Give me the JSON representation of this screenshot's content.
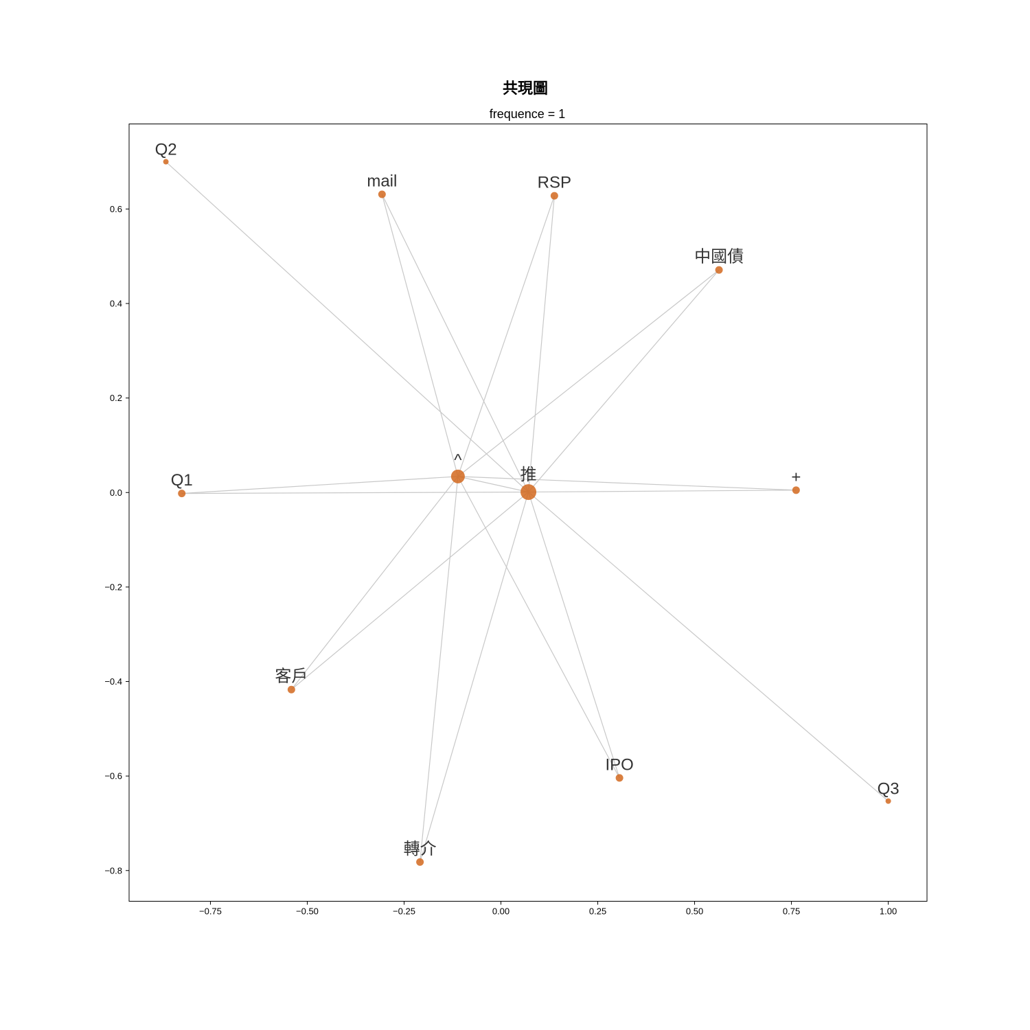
{
  "chart_data": {
    "type": "network",
    "title": "共現圖",
    "subtitle": "frequence = 1",
    "xlim": [
      -0.96,
      1.1
    ],
    "ylim": [
      -0.865,
      0.78
    ],
    "xticks": [
      {
        "value": -0.75,
        "label": "−0.75"
      },
      {
        "value": -0.5,
        "label": "−0.50"
      },
      {
        "value": -0.25,
        "label": "−0.25"
      },
      {
        "value": 0.0,
        "label": "0.00"
      },
      {
        "value": 0.25,
        "label": "0.25"
      },
      {
        "value": 0.5,
        "label": "0.50"
      },
      {
        "value": 0.75,
        "label": "0.75"
      },
      {
        "value": 1.0,
        "label": "1.00"
      }
    ],
    "yticks": [
      {
        "value": 0.6,
        "label": "0.6"
      },
      {
        "value": 0.4,
        "label": "0.4"
      },
      {
        "value": 0.2,
        "label": "0.2"
      },
      {
        "value": 0.0,
        "label": "0.0"
      },
      {
        "value": -0.2,
        "label": "−0.2"
      },
      {
        "value": -0.4,
        "label": "−0.4"
      },
      {
        "value": -0.6,
        "label": "−0.6"
      },
      {
        "value": -0.8,
        "label": "−0.8"
      }
    ],
    "node_color": "#d2691e",
    "edge_color": "#c8c8c8",
    "nodes": [
      {
        "id": "Q2",
        "x": -0.865,
        "y": 0.7,
        "weight": 1
      },
      {
        "id": "mail",
        "x": -0.307,
        "y": 0.631,
        "weight": 2
      },
      {
        "id": "RSP",
        "x": 0.138,
        "y": 0.628,
        "weight": 2
      },
      {
        "id": "中國債",
        "x": 0.563,
        "y": 0.471,
        "weight": 2
      },
      {
        "id": "^",
        "x": -0.111,
        "y": 0.034,
        "weight": 5
      },
      {
        "id": "Q1",
        "x": -0.824,
        "y": -0.002,
        "weight": 2
      },
      {
        "id": "推",
        "x": 0.071,
        "y": 0.001,
        "weight": 6
      },
      {
        "id": "+",
        "x": 0.762,
        "y": 0.005,
        "weight": 2
      },
      {
        "id": "客戶",
        "x": -0.541,
        "y": -0.417,
        "weight": 2
      },
      {
        "id": "IPO",
        "x": 0.306,
        "y": -0.604,
        "weight": 2
      },
      {
        "id": "Q3",
        "x": 1.0,
        "y": -0.653,
        "weight": 1
      },
      {
        "id": "轉介",
        "x": -0.209,
        "y": -0.782,
        "weight": 2
      }
    ],
    "edges": [
      [
        "Q2",
        "推"
      ],
      [
        "mail",
        "^"
      ],
      [
        "mail",
        "推"
      ],
      [
        "RSP",
        "^"
      ],
      [
        "RSP",
        "推"
      ],
      [
        "中國債",
        "^"
      ],
      [
        "中國債",
        "推"
      ],
      [
        "Q1",
        "^"
      ],
      [
        "Q1",
        "推"
      ],
      [
        "^",
        "推"
      ],
      [
        "^",
        "+"
      ],
      [
        "推",
        "+"
      ],
      [
        "客戶",
        "^"
      ],
      [
        "客戶",
        "推"
      ],
      [
        "IPO",
        "^"
      ],
      [
        "IPO",
        "推"
      ],
      [
        "Q3",
        "推"
      ],
      [
        "轉介",
        "^"
      ],
      [
        "轉介",
        "推"
      ]
    ]
  }
}
